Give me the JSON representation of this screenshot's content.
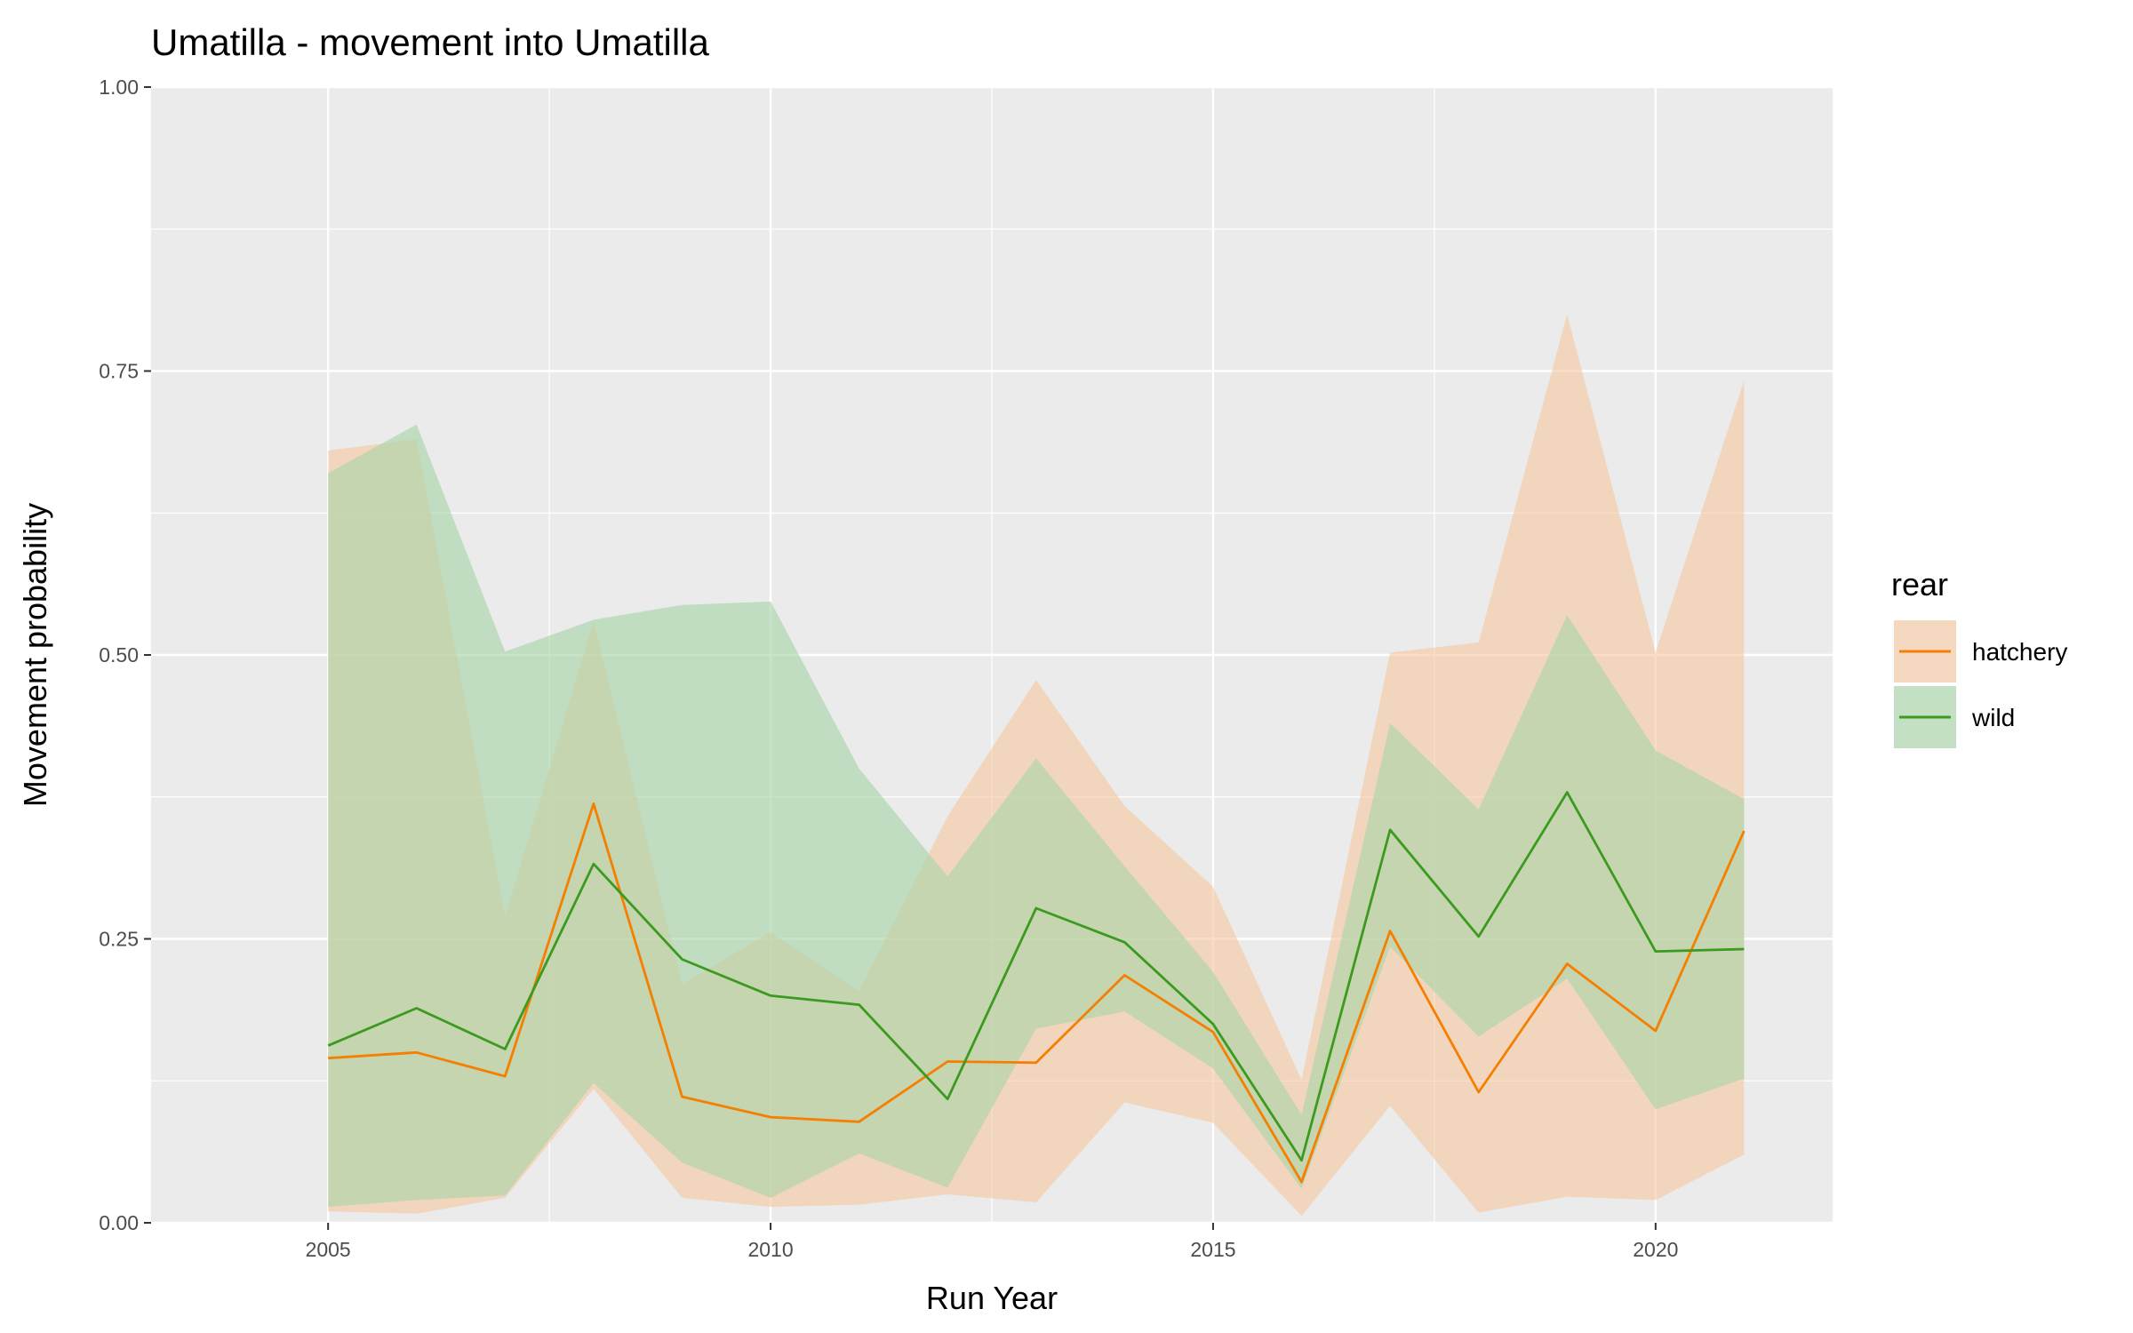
{
  "chart_data": {
    "type": "line",
    "title": "Umatilla - movement into Umatilla",
    "xlabel": "Run Year",
    "ylabel": "Movement probability",
    "xlim": [
      2003,
      2022
    ],
    "ylim": [
      0,
      1
    ],
    "x_ticks": [
      2005,
      2010,
      2015,
      2020
    ],
    "x_tick_labels": [
      "2005",
      "2010",
      "2015",
      "2020"
    ],
    "y_ticks": [
      0,
      0.25,
      0.5,
      0.75,
      1
    ],
    "y_tick_labels": [
      "0.00",
      "0.25",
      "0.50",
      "0.75",
      "1.00"
    ],
    "grid": true,
    "legend": {
      "title": "rear",
      "position": "right"
    },
    "x": [
      2005,
      2006,
      2007,
      2008,
      2009,
      2010,
      2011,
      2012,
      2013,
      2014,
      2015,
      2016,
      2017,
      2018,
      2019,
      2020,
      2021
    ],
    "series": [
      {
        "name": "hatchery",
        "color": "#F57F00",
        "fill_color": "#F5C9A2",
        "values": [
          0.145,
          0.15,
          0.129,
          0.369,
          0.111,
          0.093,
          0.089,
          0.142,
          0.141,
          0.218,
          0.168,
          0.036,
          0.257,
          0.115,
          0.228,
          0.169,
          0.345
        ],
        "lower": [
          0.01,
          0.008,
          0.022,
          0.118,
          0.022,
          0.014,
          0.016,
          0.025,
          0.018,
          0.106,
          0.088,
          0.006,
          0.103,
          0.009,
          0.023,
          0.02,
          0.06
        ],
        "upper": [
          0.68,
          0.69,
          0.27,
          0.53,
          0.21,
          0.256,
          0.204,
          0.358,
          0.478,
          0.367,
          0.296,
          0.126,
          0.502,
          0.511,
          0.8,
          0.502,
          0.742
        ]
      },
      {
        "name": "wild",
        "color": "#3C9A1F",
        "fill_color": "#A8D5A8",
        "values": [
          0.156,
          0.189,
          0.153,
          0.316,
          0.232,
          0.2,
          0.192,
          0.109,
          0.277,
          0.247,
          0.175,
          0.055,
          0.346,
          0.252,
          0.379,
          0.239,
          0.241
        ],
        "lower": [
          0.014,
          0.02,
          0.024,
          0.123,
          0.053,
          0.022,
          0.061,
          0.031,
          0.171,
          0.186,
          0.136,
          0.03,
          0.243,
          0.164,
          0.215,
          0.1,
          0.127
        ],
        "upper": [
          0.66,
          0.703,
          0.503,
          0.531,
          0.544,
          0.547,
          0.4,
          0.305,
          0.409,
          0.314,
          0.221,
          0.095,
          0.44,
          0.364,
          0.535,
          0.416,
          0.373
        ]
      }
    ]
  }
}
